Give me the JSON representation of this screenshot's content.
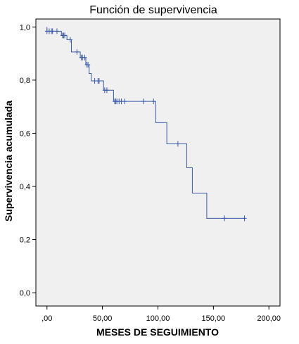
{
  "chart_data": {
    "type": "line",
    "subtype": "step-survival",
    "title": "Función de supervivencia",
    "xlabel": "MESES DE SEGUIMIENTO",
    "ylabel": "Supervivencia acumulada",
    "xlim": [
      -10,
      210
    ],
    "ylim": [
      -0.05,
      1.03
    ],
    "xticks": [
      0,
      50,
      100,
      150,
      200
    ],
    "xtick_labels": [
      ",00",
      "50,00",
      "100,00",
      "150,00",
      "200,00"
    ],
    "yticks": [
      0.0,
      0.2,
      0.4,
      0.6,
      0.8,
      1.0
    ],
    "ytick_labels": [
      "0,0",
      "0,2",
      "0,4",
      "0,6",
      "0,8",
      "1,0"
    ],
    "grid": false,
    "series": [
      {
        "color": "#3a5aa8",
        "steps": [
          [
            0,
            1.0
          ],
          [
            0,
            0.984
          ],
          [
            13,
            0.984
          ],
          [
            13,
            0.968
          ],
          [
            18,
            0.968
          ],
          [
            18,
            0.952
          ],
          [
            22,
            0.952
          ],
          [
            22,
            0.906
          ],
          [
            30,
            0.906
          ],
          [
            30,
            0.885
          ],
          [
            35,
            0.885
          ],
          [
            35,
            0.858
          ],
          [
            38,
            0.858
          ],
          [
            38,
            0.825
          ],
          [
            40,
            0.825
          ],
          [
            40,
            0.797
          ],
          [
            51,
            0.797
          ],
          [
            51,
            0.762
          ],
          [
            60,
            0.762
          ],
          [
            60,
            0.72
          ],
          [
            98,
            0.72
          ],
          [
            98,
            0.64
          ],
          [
            108,
            0.64
          ],
          [
            108,
            0.56
          ],
          [
            126,
            0.56
          ],
          [
            126,
            0.47
          ],
          [
            131,
            0.47
          ],
          [
            131,
            0.375
          ],
          [
            144,
            0.375
          ],
          [
            144,
            0.28
          ],
          [
            178,
            0.28
          ]
        ],
        "censored": [
          [
            0,
            0.984
          ],
          [
            2,
            0.984
          ],
          [
            4,
            0.984
          ],
          [
            5,
            0.984
          ],
          [
            9,
            0.984
          ],
          [
            14,
            0.968
          ],
          [
            15,
            0.968
          ],
          [
            16,
            0.968
          ],
          [
            21,
            0.952
          ],
          [
            27,
            0.906
          ],
          [
            31,
            0.885
          ],
          [
            32,
            0.885
          ],
          [
            34,
            0.885
          ],
          [
            36,
            0.858
          ],
          [
            37,
            0.858
          ],
          [
            43,
            0.797
          ],
          [
            46,
            0.797
          ],
          [
            47,
            0.797
          ],
          [
            52,
            0.762
          ],
          [
            54,
            0.762
          ],
          [
            61,
            0.72
          ],
          [
            62,
            0.72
          ],
          [
            63,
            0.72
          ],
          [
            65,
            0.72
          ],
          [
            67,
            0.72
          ],
          [
            70,
            0.72
          ],
          [
            87,
            0.72
          ],
          [
            96,
            0.72
          ],
          [
            118,
            0.56
          ],
          [
            160,
            0.28
          ],
          [
            178,
            0.28
          ]
        ]
      }
    ]
  }
}
